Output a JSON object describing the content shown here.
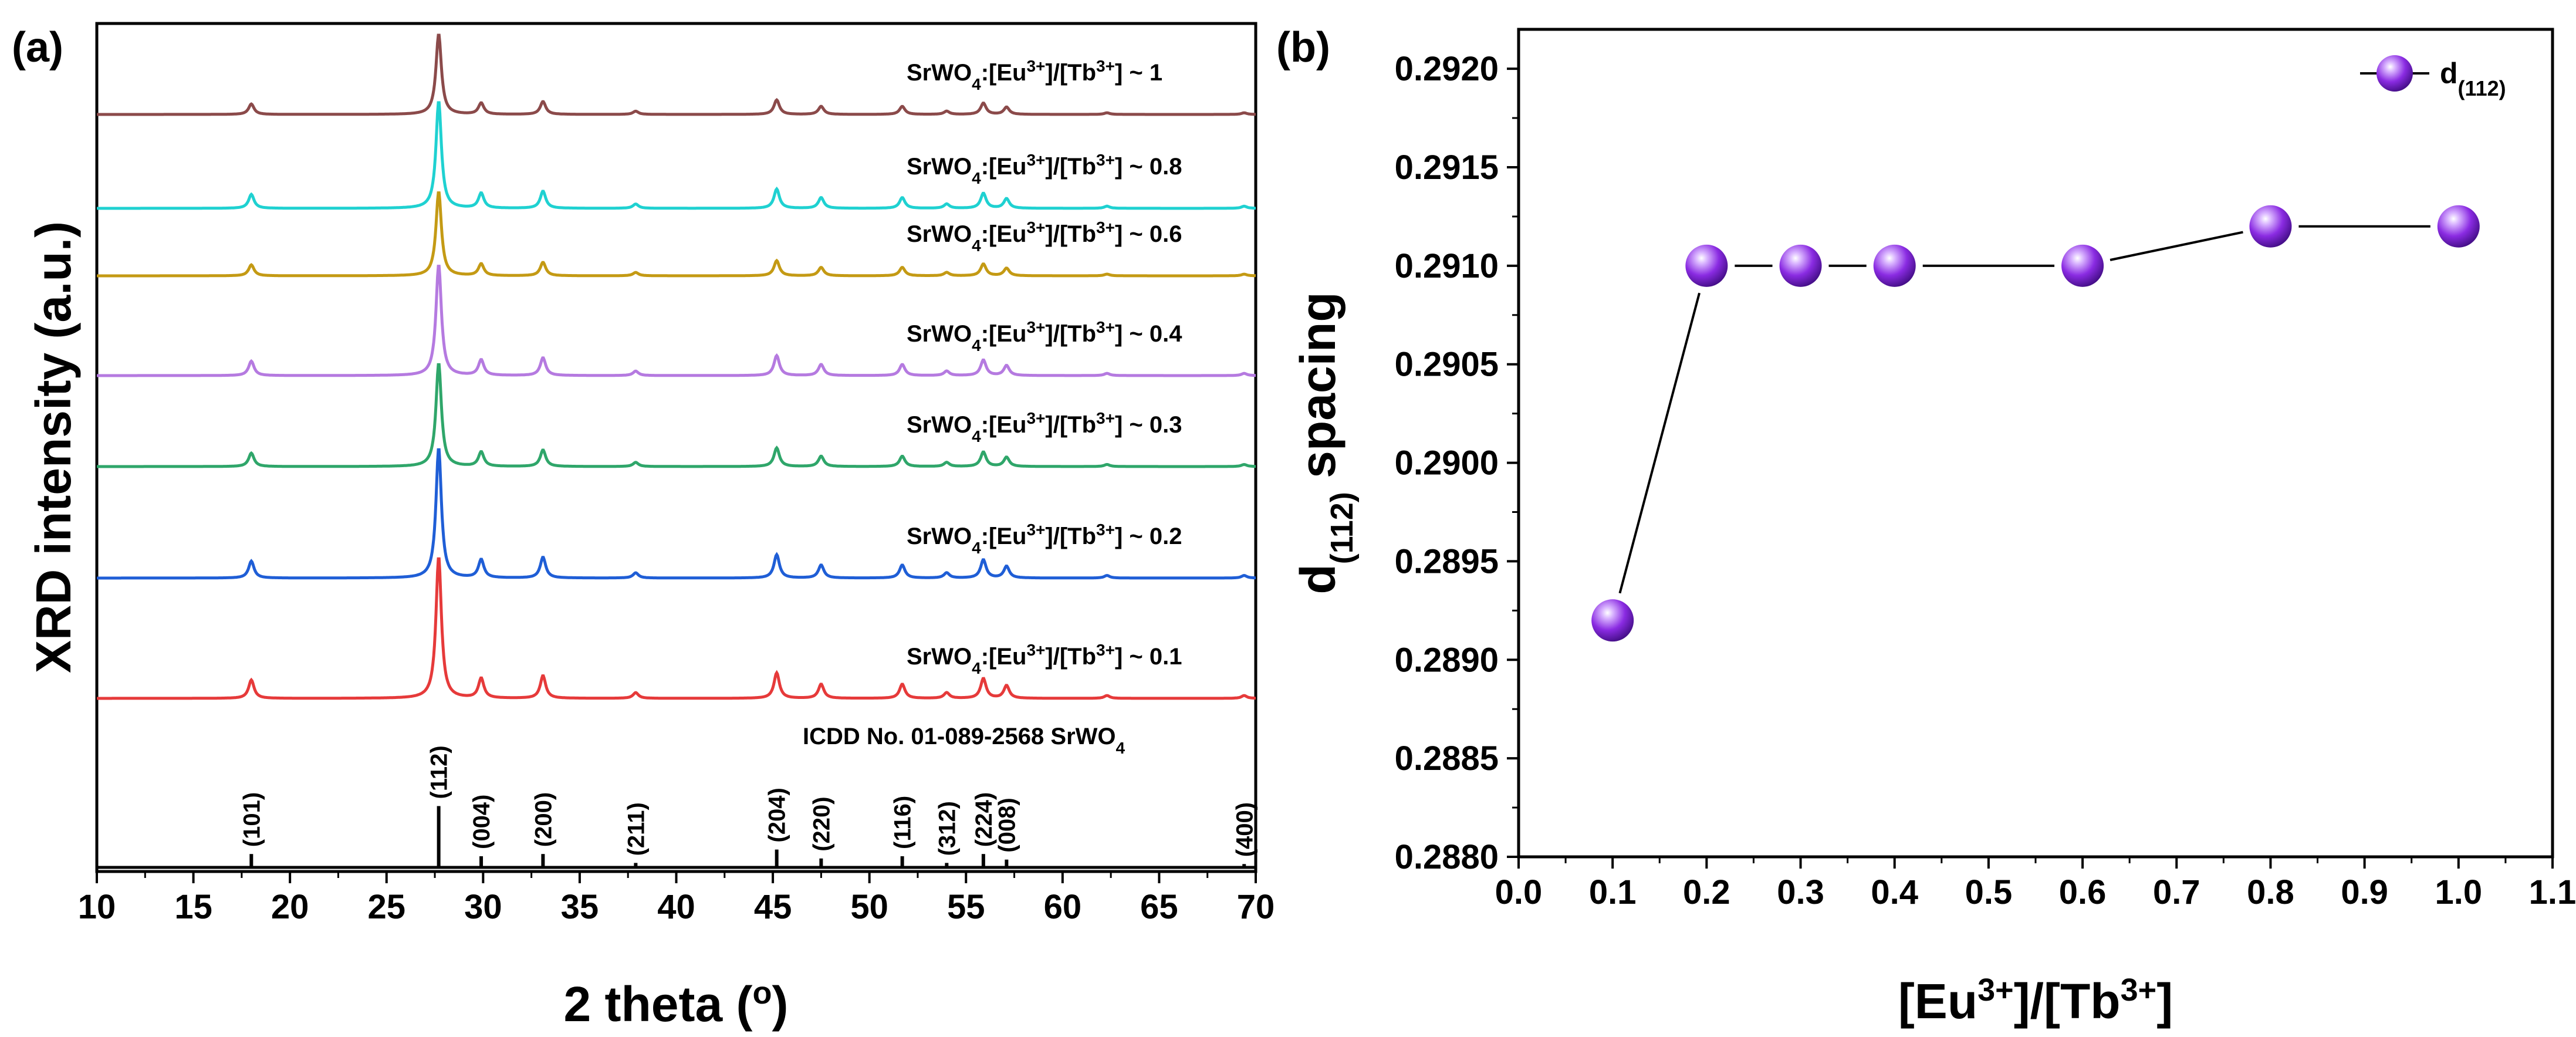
{
  "chart_data": [
    {
      "panel": "(a)",
      "type": "line",
      "xlabel_main": "2 theta (",
      "xlabel_sup": "o",
      "xlabel_end": ")",
      "ylabel": "XRD intensity (a.u.)",
      "xlim": [
        10,
        70
      ],
      "x_ticks": [
        "10",
        "15",
        "20",
        "25",
        "30",
        "35",
        "40",
        "45",
        "50",
        "55",
        "60",
        "65",
        "70"
      ],
      "peaks": [
        18.0,
        27.7,
        29.9,
        33.1,
        37.9,
        45.2,
        47.5,
        51.7,
        54.0,
        55.9,
        57.1,
        62.3,
        69.4
      ],
      "peak_rel": [
        0.13,
        1.0,
        0.14,
        0.16,
        0.04,
        0.18,
        0.1,
        0.1,
        0.04,
        0.14,
        0.09,
        0.02,
        0.02
      ],
      "series": [
        {
          "ratio": "1",
          "color": "#8b4a4a",
          "peak_height": 0.42
        },
        {
          "ratio": "0.8",
          "color": "#1fd1d1",
          "peak_height": 0.56
        },
        {
          "ratio": "0.6",
          "color": "#c49a14",
          "peak_height": 0.44
        },
        {
          "ratio": "0.4",
          "color": "#b57ae0",
          "peak_height": 0.58
        },
        {
          "ratio": "0.3",
          "color": "#2fa66a",
          "peak_height": 0.54
        },
        {
          "ratio": "0.2",
          "color": "#1f5ed6",
          "peak_height": 0.68
        },
        {
          "ratio": "0.1",
          "color": "#e63a3a",
          "peak_height": 0.74
        }
      ],
      "series_label_prefix": "SrWO",
      "series_label_sub": "4",
      "series_label_mid1": ":[Eu",
      "series_label_sup1": "3+",
      "series_label_mid2": "]/[Tb",
      "series_label_sup2": "3+",
      "series_label_mid3": "] ~ ",
      "reference": {
        "label_main": "ICDD No. 01-089-2568 SrWO",
        "label_sub": "4",
        "lines": [
          {
            "x": 18.0,
            "h": 0.12,
            "hkl": "(101)"
          },
          {
            "x": 27.7,
            "h": 0.55,
            "hkl": "(112)"
          },
          {
            "x": 29.9,
            "h": 0.1,
            "hkl": "(004)"
          },
          {
            "x": 33.1,
            "h": 0.12,
            "hkl": "(200)"
          },
          {
            "x": 37.9,
            "h": 0.04,
            "hkl": "(211)"
          },
          {
            "x": 45.2,
            "h": 0.16,
            "hkl": "(204)"
          },
          {
            "x": 47.5,
            "h": 0.08,
            "hkl": "(220)"
          },
          {
            "x": 51.7,
            "h": 0.1,
            "hkl": "(116)"
          },
          {
            "x": 54.0,
            "h": 0.04,
            "hkl": "(312)"
          },
          {
            "x": 55.9,
            "h": 0.12,
            "hkl": "(224)"
          },
          {
            "x": 57.1,
            "h": 0.07,
            "hkl": "(008)"
          },
          {
            "x": 69.4,
            "h": 0.03,
            "hkl": "(400)"
          }
        ]
      }
    },
    {
      "panel": "(b)",
      "type": "line",
      "xlabel": "[Eu3+]/[Tb3+]",
      "xlabel_parts": [
        "[Eu",
        "3+",
        "]/[Tb",
        "3+",
        "]"
      ],
      "ylabel_parts": [
        "d",
        "(112)",
        " spacing"
      ],
      "xlim": [
        0.0,
        1.1
      ],
      "ylim": [
        0.288,
        0.2922
      ],
      "x_ticks": [
        "0.0",
        "0.1",
        "0.2",
        "0.3",
        "0.4",
        "0.5",
        "0.6",
        "0.7",
        "0.8",
        "0.9",
        "1.0",
        "1.1"
      ],
      "y_ticks": [
        "0.2880",
        "0.2885",
        "0.2890",
        "0.2895",
        "0.2900",
        "0.2905",
        "0.2910",
        "0.2915",
        "0.2920"
      ],
      "x": [
        0.1,
        0.2,
        0.3,
        0.4,
        0.6,
        0.8,
        1.0
      ],
      "y": [
        0.2892,
        0.291,
        0.291,
        0.291,
        0.291,
        0.2912,
        0.2912
      ],
      "legend": {
        "main": "d",
        "sub": "(112)"
      },
      "marker_color": "#8a2be2"
    }
  ]
}
